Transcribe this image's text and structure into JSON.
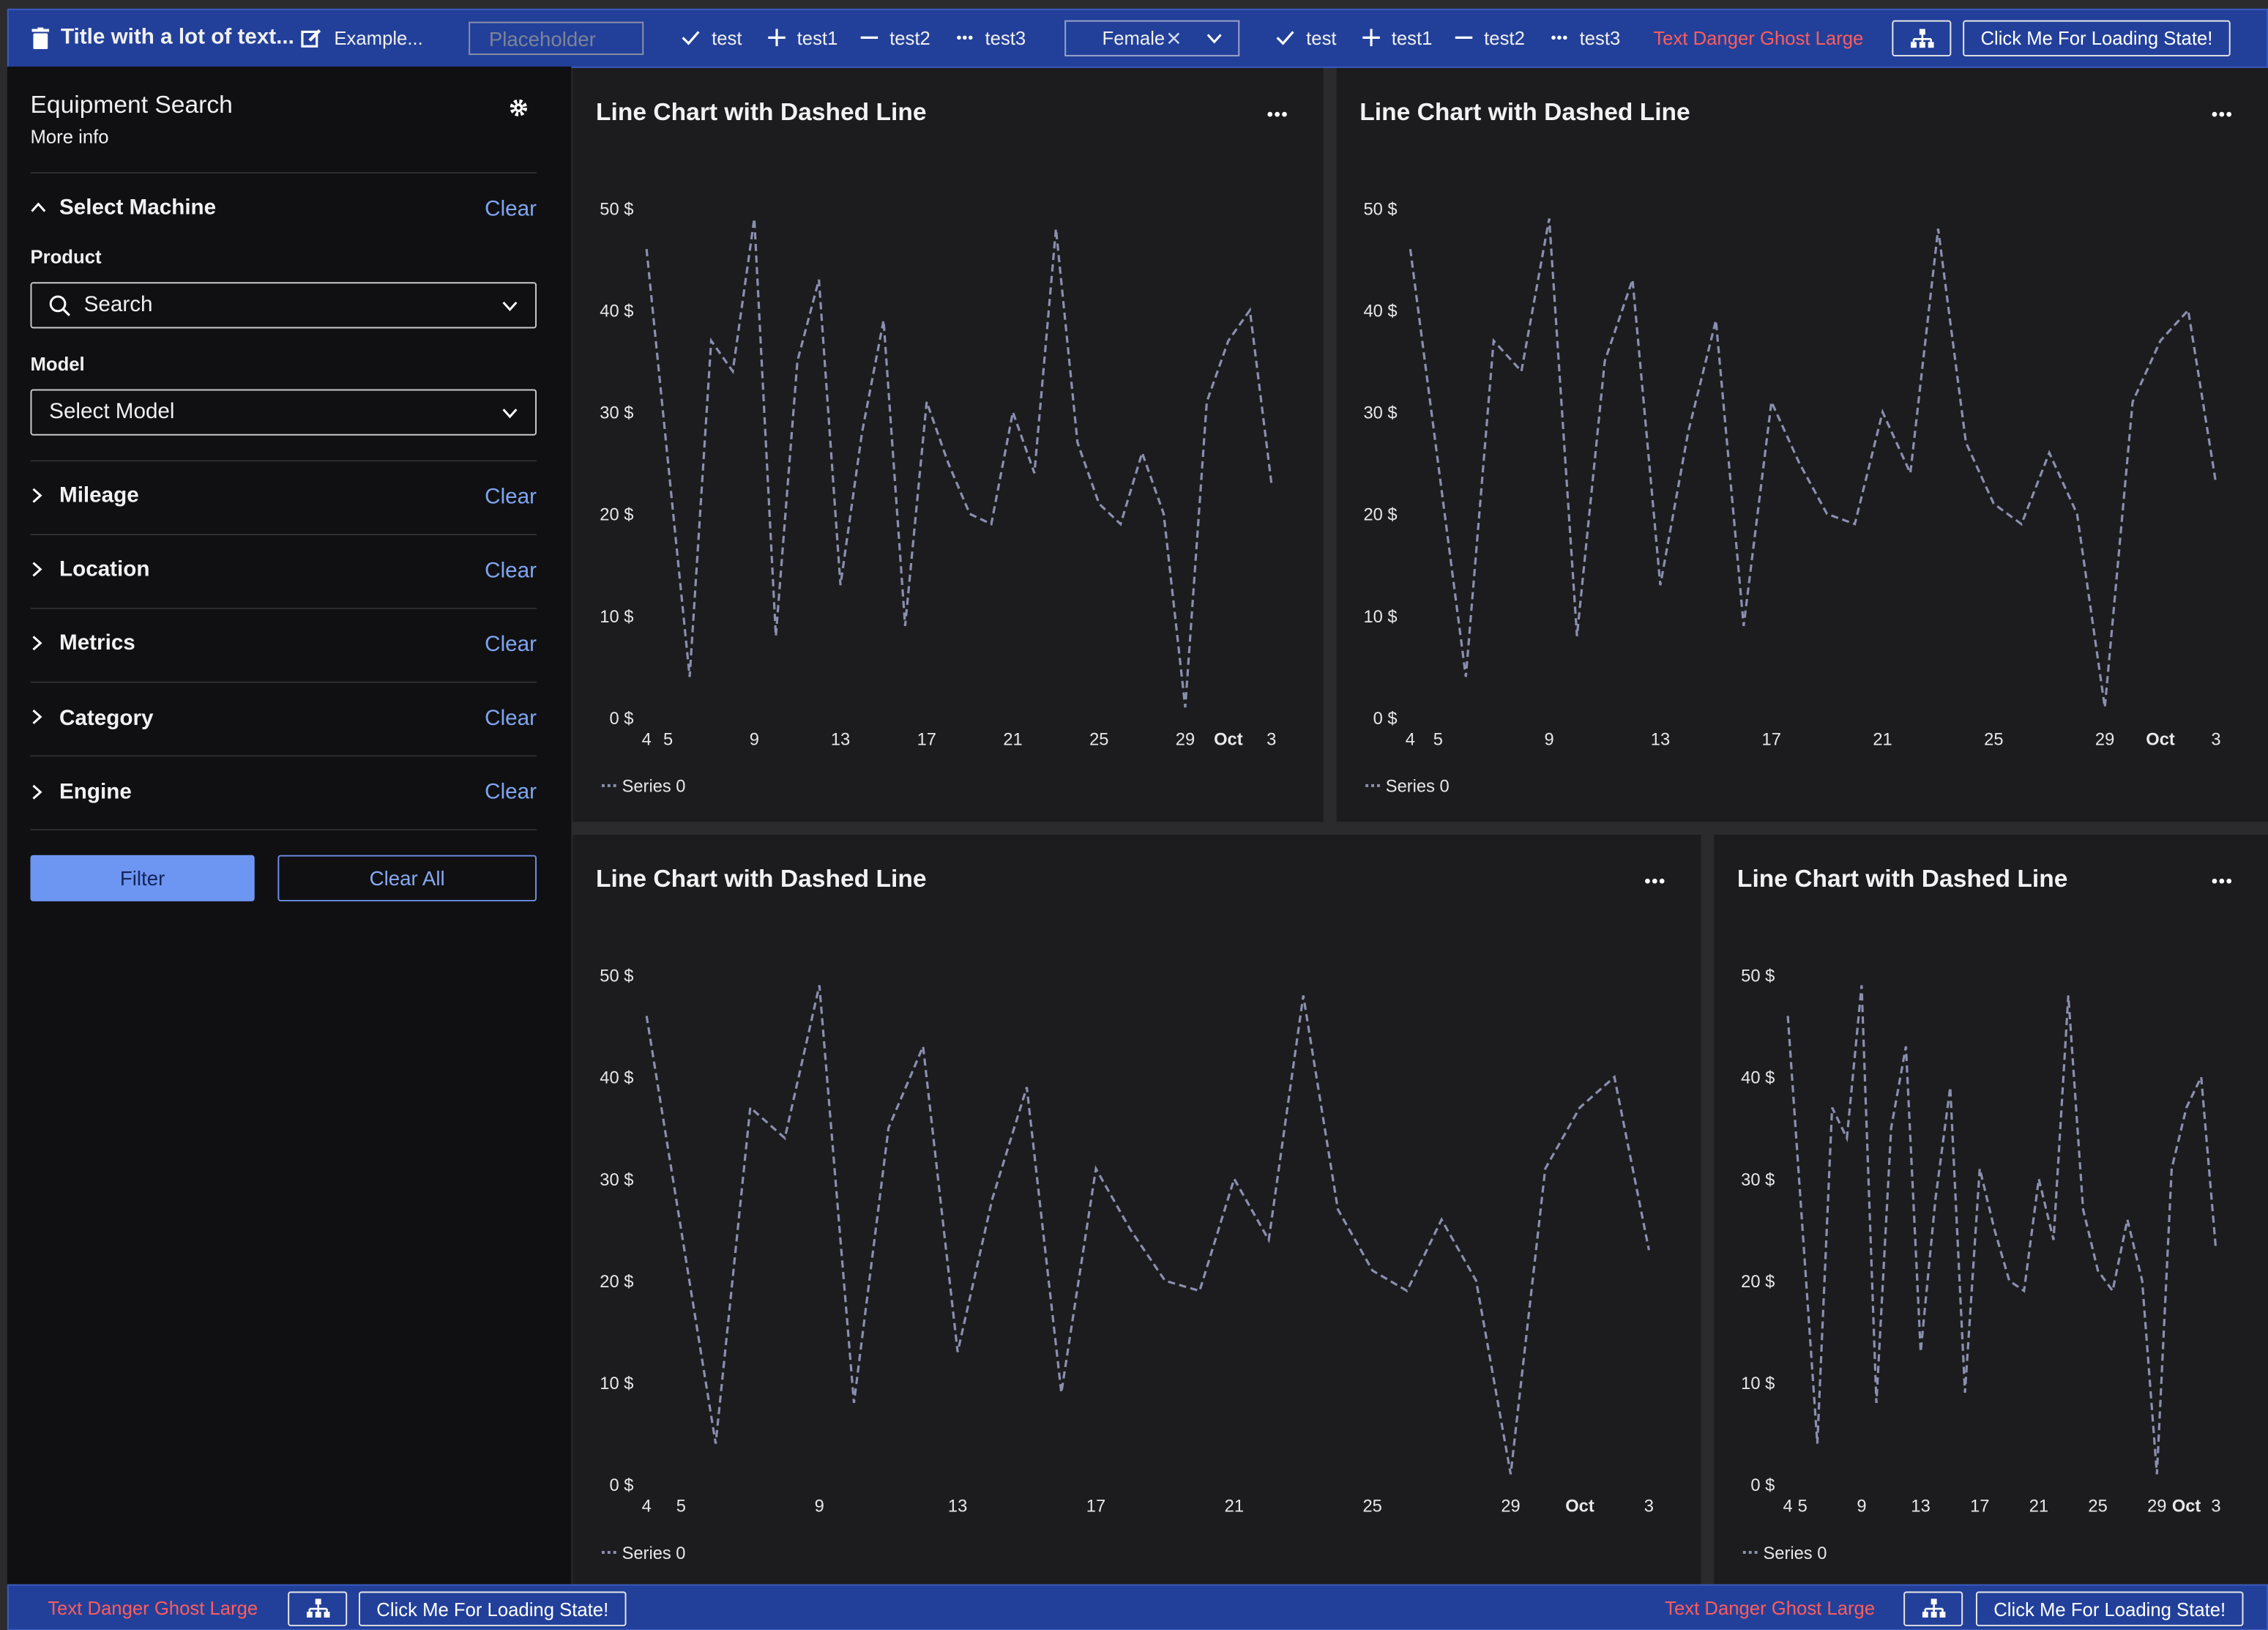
{
  "header": {
    "title": "Title with a lot of text...",
    "edit_label": "Example...",
    "input_placeholder": "Placeholder",
    "items": [
      "test",
      "test1",
      "test2",
      "test3"
    ],
    "select_value": "Female",
    "items_2": [
      "test",
      "test1",
      "test2",
      "test3"
    ],
    "danger_text": "Text Danger Ghost Large",
    "loading_button": "Click Me For Loading State!"
  },
  "sidebar": {
    "title": "Equipment Search",
    "subtitle": "More info",
    "sections": [
      {
        "label": "Select Machine",
        "action": "Clear"
      },
      {
        "label": "Mileage",
        "action": "Clear"
      },
      {
        "label": "Location",
        "action": "Clear"
      },
      {
        "label": "Metrics",
        "action": "Clear"
      },
      {
        "label": "Category",
        "action": "Clear"
      },
      {
        "label": "Engine",
        "action": "Clear"
      }
    ],
    "product_label": "Product",
    "product_placeholder": "Search",
    "model_label": "Model",
    "model_placeholder": "Select Model",
    "filter_button": "Filter",
    "clear_all_button": "Clear All"
  },
  "footer": {
    "left": {
      "danger_text": "Text Danger Ghost Large",
      "loading_button": "Click Me For Loading State!"
    },
    "right": {
      "danger_text": "Text Danger Ghost Large",
      "loading_button": "Click Me For Loading State!"
    }
  },
  "chart_data": [
    {
      "type": "line",
      "title": "Line Chart with Dashed Line",
      "x": [
        4,
        5,
        6,
        7,
        8,
        9,
        10,
        11,
        12,
        13,
        14,
        15,
        16,
        17,
        18,
        19,
        20,
        21,
        22,
        23,
        24,
        25,
        26,
        27,
        28,
        29,
        30,
        31,
        32,
        33
      ],
      "xlim": [
        4,
        33
      ],
      "xticks": [
        4,
        5,
        9,
        13,
        17,
        21,
        25,
        29,
        {
          "value": 31,
          "label": "Oct"
        },
        {
          "value": 33,
          "label": "3"
        }
      ],
      "ylim": [
        0,
        50
      ],
      "yticks": [
        {
          "value": 0,
          "label": "0 $"
        },
        {
          "value": 10,
          "label": "10 $"
        },
        {
          "value": 20,
          "label": "20 $"
        },
        {
          "value": 30,
          "label": "30 $"
        },
        {
          "value": 40,
          "label": "40 $"
        },
        {
          "value": 50,
          "label": "50 $"
        }
      ],
      "grid": false,
      "dashed": true,
      "series": [
        {
          "name": "Series 0",
          "color": "#8b8fb0",
          "values": [
            46,
            25,
            4,
            37,
            34,
            49,
            8,
            35,
            43,
            13,
            28,
            39,
            9,
            31,
            25,
            20,
            19,
            30,
            24,
            48,
            27,
            21,
            19,
            26,
            20,
            1,
            31,
            37,
            40,
            23
          ]
        }
      ]
    },
    {
      "type": "line",
      "title": "Line Chart with Dashed Line",
      "x": [
        4,
        5,
        6,
        7,
        8,
        9,
        10,
        11,
        12,
        13,
        14,
        15,
        16,
        17,
        18,
        19,
        20,
        21,
        22,
        23,
        24,
        25,
        26,
        27,
        28,
        29,
        30,
        31,
        32,
        33
      ],
      "xlim": [
        4,
        33
      ],
      "xticks": [
        4,
        5,
        9,
        13,
        17,
        21,
        25,
        29,
        {
          "value": 31,
          "label": "Oct"
        },
        {
          "value": 33,
          "label": "3"
        }
      ],
      "ylim": [
        0,
        50
      ],
      "yticks": [
        {
          "value": 0,
          "label": "0 $"
        },
        {
          "value": 10,
          "label": "10 $"
        },
        {
          "value": 20,
          "label": "20 $"
        },
        {
          "value": 30,
          "label": "30 $"
        },
        {
          "value": 40,
          "label": "40 $"
        },
        {
          "value": 50,
          "label": "50 $"
        }
      ],
      "grid": false,
      "dashed": true,
      "series": [
        {
          "name": "Series 0",
          "color": "#8b8fb0",
          "values": [
            46,
            25,
            4,
            37,
            34,
            49,
            8,
            35,
            43,
            13,
            28,
            39,
            9,
            31,
            25,
            20,
            19,
            30,
            24,
            48,
            27,
            21,
            19,
            26,
            20,
            1,
            31,
            37,
            40,
            23
          ]
        }
      ]
    },
    {
      "type": "line",
      "title": "Line Chart with Dashed Line",
      "x": [
        4,
        5,
        6,
        7,
        8,
        9,
        10,
        11,
        12,
        13,
        14,
        15,
        16,
        17,
        18,
        19,
        20,
        21,
        22,
        23,
        24,
        25,
        26,
        27,
        28,
        29,
        30,
        31,
        32,
        33
      ],
      "xlim": [
        4,
        33
      ],
      "xticks": [
        4,
        5,
        9,
        13,
        17,
        21,
        25,
        29,
        {
          "value": 31,
          "label": "Oct"
        },
        {
          "value": 33,
          "label": "3"
        }
      ],
      "ylim": [
        0,
        50
      ],
      "yticks": [
        {
          "value": 0,
          "label": "0 $"
        },
        {
          "value": 10,
          "label": "10 $"
        },
        {
          "value": 20,
          "label": "20 $"
        },
        {
          "value": 30,
          "label": "30 $"
        },
        {
          "value": 40,
          "label": "40 $"
        },
        {
          "value": 50,
          "label": "50 $"
        }
      ],
      "grid": false,
      "dashed": true,
      "series": [
        {
          "name": "Series 0",
          "color": "#8b8fb0",
          "values": [
            46,
            25,
            4,
            37,
            34,
            49,
            8,
            35,
            43,
            13,
            28,
            39,
            9,
            31,
            25,
            20,
            19,
            30,
            24,
            48,
            27,
            21,
            19,
            26,
            20,
            1,
            31,
            37,
            40,
            23
          ]
        }
      ]
    },
    {
      "type": "line",
      "title": "Line Chart with Dashed Line",
      "x": [
        4,
        5,
        6,
        7,
        8,
        9,
        10,
        11,
        12,
        13,
        14,
        15,
        16,
        17,
        18,
        19,
        20,
        21,
        22,
        23,
        24,
        25,
        26,
        27,
        28,
        29,
        30,
        31,
        32,
        33
      ],
      "xlim": [
        4,
        33
      ],
      "xticks": [
        4,
        5,
        9,
        13,
        17,
        21,
        25,
        29,
        {
          "value": 31,
          "label": "Oct"
        },
        {
          "value": 33,
          "label": "3"
        }
      ],
      "ylim": [
        0,
        50
      ],
      "yticks": [
        {
          "value": 0,
          "label": "0 $"
        },
        {
          "value": 10,
          "label": "10 $"
        },
        {
          "value": 20,
          "label": "20 $"
        },
        {
          "value": 30,
          "label": "30 $"
        },
        {
          "value": 40,
          "label": "40 $"
        },
        {
          "value": 50,
          "label": "50 $"
        }
      ],
      "grid": false,
      "dashed": true,
      "series": [
        {
          "name": "Series 0",
          "color": "#8b8fb0",
          "values": [
            46,
            25,
            4,
            37,
            34,
            49,
            8,
            35,
            43,
            13,
            28,
            39,
            9,
            31,
            25,
            20,
            19,
            30,
            24,
            48,
            27,
            21,
            19,
            26,
            20,
            1,
            31,
            37,
            40,
            23
          ]
        }
      ]
    }
  ]
}
